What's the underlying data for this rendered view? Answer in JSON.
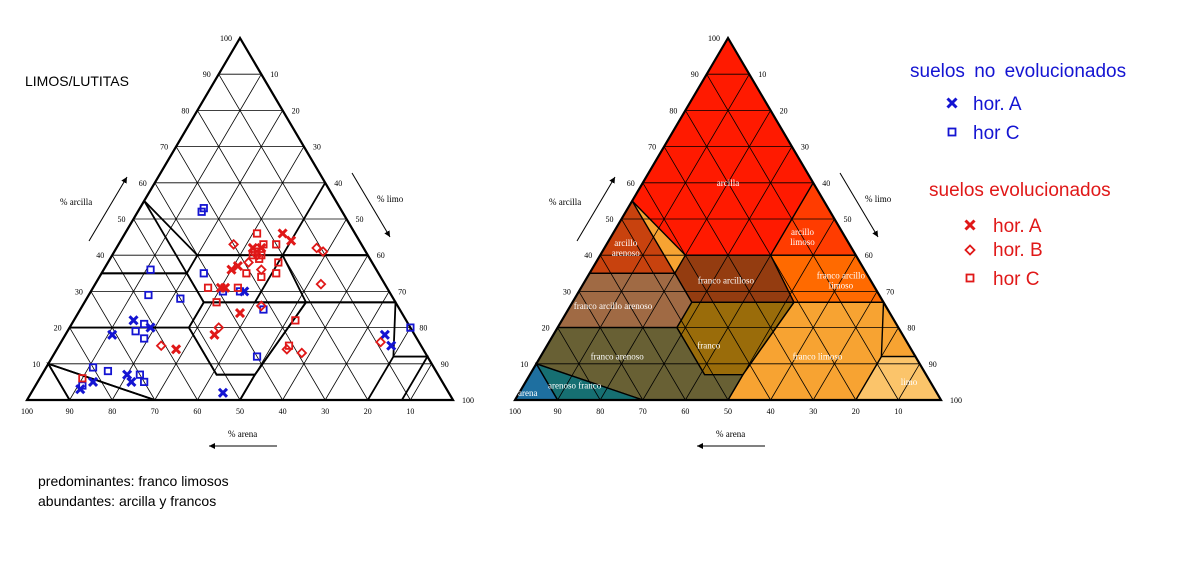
{
  "chart_data": [
    {
      "type": "scatter",
      "subtype": "soil texture ternary diagram",
      "title": "LIMOS/LUTITAS",
      "axes": {
        "clay_label": "% arcilla",
        "silt_label": "% limo",
        "sand_label": "% arena",
        "ticks": [
          "10",
          "20",
          "30",
          "40",
          "50",
          "60",
          "70",
          "80",
          "90",
          "100"
        ]
      },
      "notes": [
        "predominantes: franco limosos",
        "abundantes: arcilla y francos"
      ],
      "series": [
        {
          "name": "hor. A",
          "group": "suelos no evolucionados",
          "color": "#1414d2",
          "marker": "x",
          "points": [
            [
              18,
              75
            ],
            [
              15,
              78
            ],
            [
              2,
              45
            ],
            [
              5,
              13
            ],
            [
              3,
              11
            ],
            [
              5,
              22
            ],
            [
              7,
              20
            ],
            [
              20,
              19
            ],
            [
              22,
              14
            ],
            [
              18,
              11
            ],
            [
              30,
              36
            ]
          ]
        },
        {
          "name": "hor C",
          "group": "suelos no evolucionados",
          "color": "#1414d2",
          "marker": "square",
          "points": [
            [
              20,
              80
            ],
            [
              9,
              11
            ],
            [
              4,
              11
            ],
            [
              7,
              23
            ],
            [
              8,
              15
            ],
            [
              17,
              19
            ],
            [
              19,
              16
            ],
            [
              5,
              25
            ],
            [
              21,
              17
            ],
            [
              28,
              22
            ],
            [
              36,
              11
            ],
            [
              29,
              14
            ],
            [
              35,
              24
            ],
            [
              52,
              15
            ],
            [
              53,
              15
            ],
            [
              12,
              48
            ],
            [
              25,
              43
            ],
            [
              30,
              35
            ],
            [
              30,
              31
            ]
          ]
        },
        {
          "name": "hor. A",
          "group": "suelos evolucionados",
          "color": "#e01818",
          "marker": "x",
          "points": [
            [
              14,
              28
            ],
            [
              18,
              35
            ],
            [
              24,
              38
            ],
            [
              31,
              30
            ],
            [
              42,
              34
            ],
            [
              46,
              37
            ],
            [
              36,
              30
            ],
            [
              31,
              31
            ],
            [
              37,
              31
            ],
            [
              44,
              40
            ],
            [
              42,
              32
            ]
          ]
        },
        {
          "name": "hor. B",
          "group": "suelos evolucionados",
          "color": "#e01818",
          "marker": "diamond",
          "points": [
            [
              16,
              75
            ],
            [
              13,
              58
            ],
            [
              14,
              54
            ],
            [
              32,
              53
            ],
            [
              20,
              35
            ],
            [
              26,
              42
            ],
            [
              15,
              24
            ],
            [
              36,
              37
            ],
            [
              42,
              47
            ],
            [
              41,
              49
            ],
            [
              38,
              33
            ],
            [
              43,
              27
            ],
            [
              40,
              34
            ]
          ]
        },
        {
          "name": "hor C",
          "group": "suelos evolucionados",
          "color": "#e01818",
          "marker": "square",
          "points": [
            [
              15,
              54
            ],
            [
              27,
              31
            ],
            [
              6,
              10
            ],
            [
              31,
              27
            ],
            [
              40,
              33
            ],
            [
              35,
              34
            ],
            [
              39,
              35
            ],
            [
              41,
              33
            ],
            [
              43,
              34
            ],
            [
              22,
              52
            ],
            [
              31,
              34
            ],
            [
              35,
              41
            ],
            [
              34,
              38
            ],
            [
              38,
              40
            ],
            [
              43,
              37
            ],
            [
              46,
              31
            ],
            [
              40,
              35
            ]
          ]
        }
      ]
    },
    {
      "type": "heatmap",
      "subtype": "soil texture classes",
      "axes": {
        "clay_label": "% arcilla",
        "silt_label": "% limo",
        "sand_label": "% arena",
        "ticks": [
          "10",
          "20",
          "30",
          "40",
          "50",
          "60",
          "70",
          "80",
          "90",
          "100"
        ]
      },
      "classes": [
        {
          "name": "arcilla",
          "color": "#ff1a00"
        },
        {
          "name": "arcillo limoso",
          "color": "#ff3c00"
        },
        {
          "name": "arcillo arenoso",
          "color": "#c8420e"
        },
        {
          "name": "franco arcillo limoso",
          "color": "#ff6a00"
        },
        {
          "name": "franco arcilloso",
          "color": "#943c10"
        },
        {
          "name": "franco arcillo arenoso",
          "color": "#a06a44"
        },
        {
          "name": "franco",
          "color": "#9a6c0a"
        },
        {
          "name": "franco limoso",
          "color": "#f7a332"
        },
        {
          "name": "limo",
          "color": "#fbc46a"
        },
        {
          "name": "franco arenoso",
          "color": "#686034"
        },
        {
          "name": "arenoso franco",
          "color": "#166f72"
        },
        {
          "name": "arena",
          "color": "#1e6fa0"
        }
      ]
    }
  ],
  "legend": {
    "group1": {
      "title": "suelos no evolucionados",
      "color": "#1414d2",
      "items": [
        {
          "marker": "x",
          "label": "hor. A"
        },
        {
          "marker": "square",
          "label": "hor C"
        }
      ]
    },
    "group2": {
      "title": "suelos evolucionados",
      "color": "#e01818",
      "items": [
        {
          "marker": "x",
          "label": "hor. A"
        },
        {
          "marker": "diamond",
          "label": "hor. B"
        },
        {
          "marker": "square",
          "label": "hor C"
        }
      ]
    }
  }
}
